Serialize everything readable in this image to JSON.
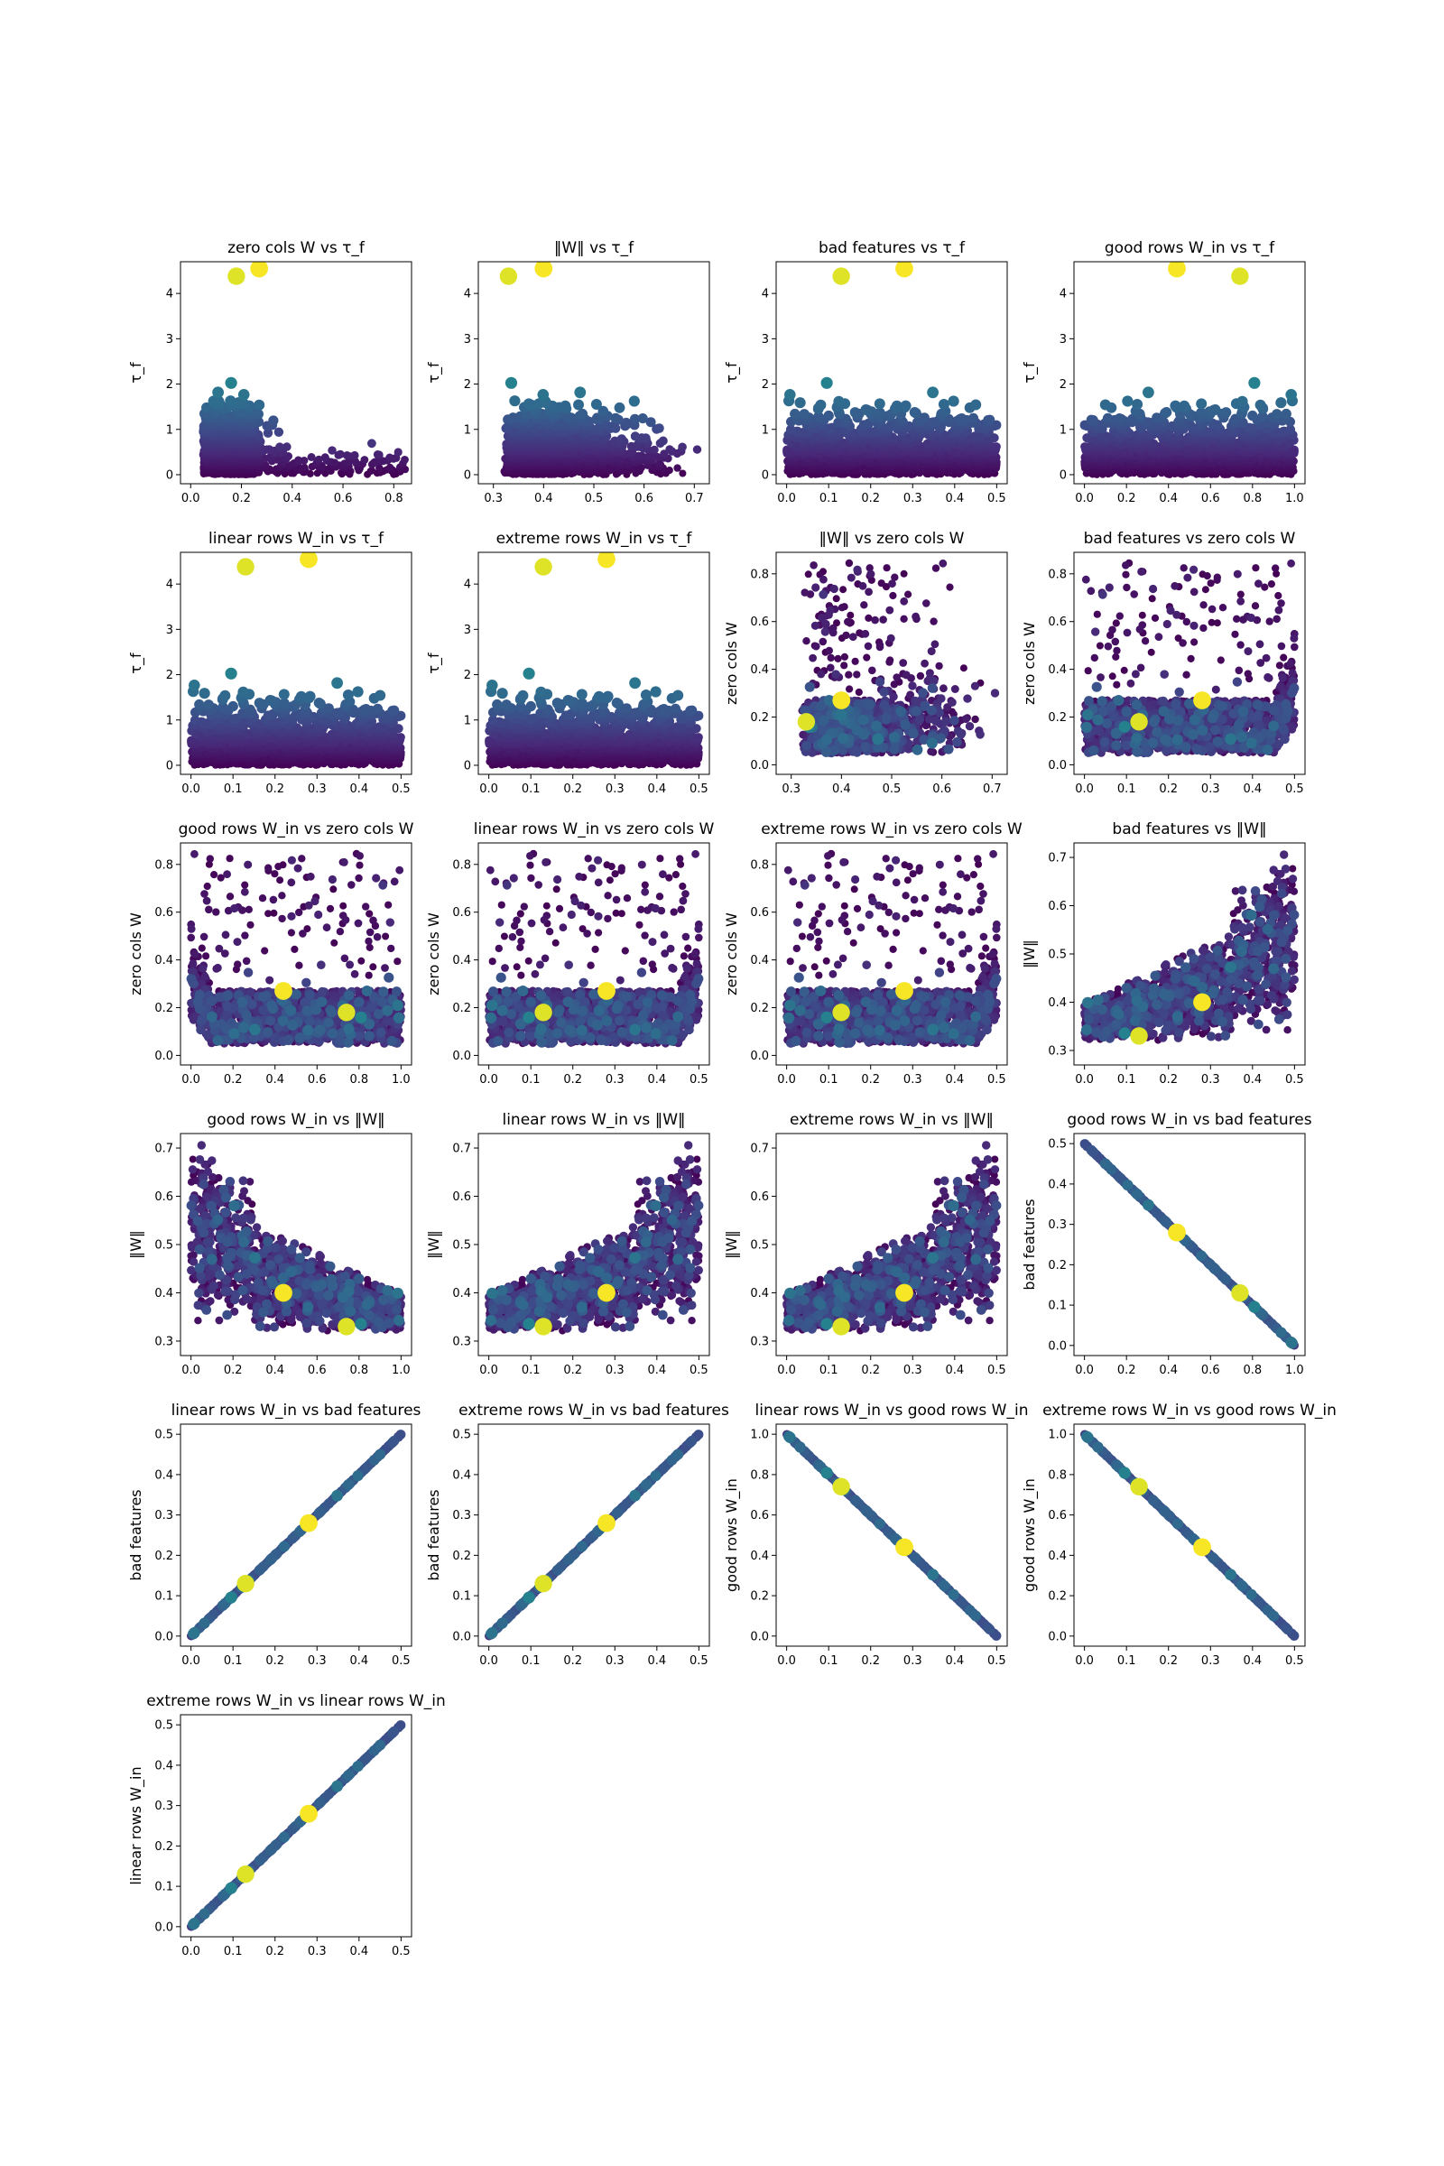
{
  "figure": {
    "colormap": "viridis"
  },
  "chart_data": [
    {
      "type": "scatter",
      "title": "zero cols W vs τ_f",
      "ylabel": "τ_f",
      "xlim": [
        -0.04,
        0.87
      ],
      "ylim": [
        -0.2,
        4.7
      ],
      "xticks": [
        "0.0",
        "0.2",
        "0.4",
        "0.6",
        "0.8"
      ],
      "yticks": [
        "0",
        "1",
        "2",
        "3",
        "4"
      ],
      "x_field": "zero_cols_W",
      "y_field": "tau_f"
    },
    {
      "type": "scatter",
      "title": "‖W‖ vs τ_f",
      "ylabel": "τ_f",
      "xlim": [
        0.27,
        0.73
      ],
      "ylim": [
        -0.2,
        4.7
      ],
      "xticks": [
        "0.3",
        "0.4",
        "0.5",
        "0.6",
        "0.7"
      ],
      "yticks": [
        "0",
        "1",
        "2",
        "3",
        "4"
      ],
      "x_field": "norm_W",
      "y_field": "tau_f"
    },
    {
      "type": "scatter",
      "title": "bad features vs τ_f",
      "ylabel": "τ_f",
      "xlim": [
        -0.025,
        0.525
      ],
      "ylim": [
        -0.2,
        4.7
      ],
      "xticks": [
        "0.0",
        "0.1",
        "0.2",
        "0.3",
        "0.4",
        "0.5"
      ],
      "yticks": [
        "0",
        "1",
        "2",
        "3",
        "4"
      ],
      "x_field": "bad_features",
      "y_field": "tau_f"
    },
    {
      "type": "scatter",
      "title": "good rows W_in vs τ_f",
      "ylabel": "τ_f",
      "xlim": [
        -0.05,
        1.05
      ],
      "ylim": [
        -0.2,
        4.7
      ],
      "xticks": [
        "0.0",
        "0.2",
        "0.4",
        "0.6",
        "0.8",
        "1.0"
      ],
      "yticks": [
        "0",
        "1",
        "2",
        "3",
        "4"
      ],
      "x_field": "good_rows_W_in",
      "y_field": "tau_f"
    },
    {
      "type": "scatter",
      "title": "linear rows W_in vs τ_f",
      "ylabel": "τ_f",
      "xlim": [
        -0.025,
        0.525
      ],
      "ylim": [
        -0.2,
        4.7
      ],
      "xticks": [
        "0.0",
        "0.1",
        "0.2",
        "0.3",
        "0.4",
        "0.5"
      ],
      "yticks": [
        "0",
        "1",
        "2",
        "3",
        "4"
      ],
      "x_field": "linear_rows_W_in",
      "y_field": "tau_f"
    },
    {
      "type": "scatter",
      "title": "extreme rows W_in vs τ_f",
      "ylabel": "τ_f",
      "xlim": [
        -0.025,
        0.525
      ],
      "ylim": [
        -0.2,
        4.7
      ],
      "xticks": [
        "0.0",
        "0.1",
        "0.2",
        "0.3",
        "0.4",
        "0.5"
      ],
      "yticks": [
        "0",
        "1",
        "2",
        "3",
        "4"
      ],
      "x_field": "extreme_rows_W_in",
      "y_field": "tau_f"
    },
    {
      "type": "scatter",
      "title": "‖W‖ vs zero cols W",
      "ylabel": "zero cols W",
      "xlim": [
        0.27,
        0.73
      ],
      "ylim": [
        -0.04,
        0.89
      ],
      "xticks": [
        "0.3",
        "0.4",
        "0.5",
        "0.6",
        "0.7"
      ],
      "yticks": [
        "0.0",
        "0.2",
        "0.4",
        "0.6",
        "0.8"
      ],
      "x_field": "norm_W",
      "y_field": "zero_cols_W"
    },
    {
      "type": "scatter",
      "title": "bad features vs zero cols W",
      "ylabel": "zero cols W",
      "xlim": [
        -0.025,
        0.525
      ],
      "ylim": [
        -0.04,
        0.89
      ],
      "xticks": [
        "0.0",
        "0.1",
        "0.2",
        "0.3",
        "0.4",
        "0.5"
      ],
      "yticks": [
        "0.0",
        "0.2",
        "0.4",
        "0.6",
        "0.8"
      ],
      "x_field": "bad_features",
      "y_field": "zero_cols_W"
    },
    {
      "type": "scatter",
      "title": "good rows W_in vs zero cols W",
      "ylabel": "zero cols W",
      "xlim": [
        -0.05,
        1.05
      ],
      "ylim": [
        -0.04,
        0.89
      ],
      "xticks": [
        "0.0",
        "0.2",
        "0.4",
        "0.6",
        "0.8",
        "1.0"
      ],
      "yticks": [
        "0.0",
        "0.2",
        "0.4",
        "0.6",
        "0.8"
      ],
      "x_field": "good_rows_W_in",
      "y_field": "zero_cols_W"
    },
    {
      "type": "scatter",
      "title": "linear rows W_in vs zero cols W",
      "ylabel": "zero cols W",
      "xlim": [
        -0.025,
        0.525
      ],
      "ylim": [
        -0.04,
        0.89
      ],
      "xticks": [
        "0.0",
        "0.1",
        "0.2",
        "0.3",
        "0.4",
        "0.5"
      ],
      "yticks": [
        "0.0",
        "0.2",
        "0.4",
        "0.6",
        "0.8"
      ],
      "x_field": "linear_rows_W_in",
      "y_field": "zero_cols_W"
    },
    {
      "type": "scatter",
      "title": "extreme rows W_in vs zero cols W",
      "ylabel": "zero cols W",
      "xlim": [
        -0.025,
        0.525
      ],
      "ylim": [
        -0.04,
        0.89
      ],
      "xticks": [
        "0.0",
        "0.1",
        "0.2",
        "0.3",
        "0.4",
        "0.5"
      ],
      "yticks": [
        "0.0",
        "0.2",
        "0.4",
        "0.6",
        "0.8"
      ],
      "x_field": "extreme_rows_W_in",
      "y_field": "zero_cols_W"
    },
    {
      "type": "scatter",
      "title": "bad features vs ‖W‖",
      "ylabel": "‖W‖",
      "xlim": [
        -0.025,
        0.525
      ],
      "ylim": [
        0.27,
        0.73
      ],
      "xticks": [
        "0.0",
        "0.1",
        "0.2",
        "0.3",
        "0.4",
        "0.5"
      ],
      "yticks": [
        "0.3",
        "0.4",
        "0.5",
        "0.6",
        "0.7"
      ],
      "x_field": "bad_features",
      "y_field": "norm_W"
    },
    {
      "type": "scatter",
      "title": "good rows W_in vs ‖W‖",
      "ylabel": "‖W‖",
      "xlim": [
        -0.05,
        1.05
      ],
      "ylim": [
        0.27,
        0.73
      ],
      "xticks": [
        "0.0",
        "0.2",
        "0.4",
        "0.6",
        "0.8",
        "1.0"
      ],
      "yticks": [
        "0.3",
        "0.4",
        "0.5",
        "0.6",
        "0.7"
      ],
      "x_field": "good_rows_W_in",
      "y_field": "norm_W"
    },
    {
      "type": "scatter",
      "title": "linear rows W_in vs ‖W‖",
      "ylabel": "‖W‖",
      "xlim": [
        -0.025,
        0.525
      ],
      "ylim": [
        0.27,
        0.73
      ],
      "xticks": [
        "0.0",
        "0.1",
        "0.2",
        "0.3",
        "0.4",
        "0.5"
      ],
      "yticks": [
        "0.3",
        "0.4",
        "0.5",
        "0.6",
        "0.7"
      ],
      "x_field": "linear_rows_W_in",
      "y_field": "norm_W"
    },
    {
      "type": "scatter",
      "title": "extreme rows W_in vs ‖W‖",
      "ylabel": "‖W‖",
      "xlim": [
        -0.025,
        0.525
      ],
      "ylim": [
        0.27,
        0.73
      ],
      "xticks": [
        "0.0",
        "0.1",
        "0.2",
        "0.3",
        "0.4",
        "0.5"
      ],
      "yticks": [
        "0.3",
        "0.4",
        "0.5",
        "0.6",
        "0.7"
      ],
      "x_field": "extreme_rows_W_in",
      "y_field": "norm_W"
    },
    {
      "type": "scatter",
      "title": "good rows W_in vs bad features",
      "ylabel": "bad features",
      "xlim": [
        -0.05,
        1.05
      ],
      "ylim": [
        -0.025,
        0.525
      ],
      "xticks": [
        "0.0",
        "0.2",
        "0.4",
        "0.6",
        "0.8",
        "1.0"
      ],
      "yticks": [
        "0.0",
        "0.1",
        "0.2",
        "0.3",
        "0.4",
        "0.5"
      ],
      "x_field": "good_rows_W_in",
      "y_field": "bad_features"
    },
    {
      "type": "scatter",
      "title": "linear rows W_in vs bad features",
      "ylabel": "bad features",
      "xlim": [
        -0.025,
        0.525
      ],
      "ylim": [
        -0.025,
        0.525
      ],
      "xticks": [
        "0.0",
        "0.1",
        "0.2",
        "0.3",
        "0.4",
        "0.5"
      ],
      "yticks": [
        "0.0",
        "0.1",
        "0.2",
        "0.3",
        "0.4",
        "0.5"
      ],
      "x_field": "linear_rows_W_in",
      "y_field": "bad_features"
    },
    {
      "type": "scatter",
      "title": "extreme rows W_in vs bad features",
      "ylabel": "bad features",
      "xlim": [
        -0.025,
        0.525
      ],
      "ylim": [
        -0.025,
        0.525
      ],
      "xticks": [
        "0.0",
        "0.1",
        "0.2",
        "0.3",
        "0.4",
        "0.5"
      ],
      "yticks": [
        "0.0",
        "0.1",
        "0.2",
        "0.3",
        "0.4",
        "0.5"
      ],
      "x_field": "extreme_rows_W_in",
      "y_field": "bad_features"
    },
    {
      "type": "scatter",
      "title": "linear rows W_in vs good rows W_in",
      "ylabel": "good rows W_in",
      "xlim": [
        -0.025,
        0.525
      ],
      "ylim": [
        -0.05,
        1.05
      ],
      "xticks": [
        "0.0",
        "0.1",
        "0.2",
        "0.3",
        "0.4",
        "0.5"
      ],
      "yticks": [
        "0.0",
        "0.2",
        "0.4",
        "0.6",
        "0.8",
        "1.0"
      ],
      "x_field": "linear_rows_W_in",
      "y_field": "good_rows_W_in"
    },
    {
      "type": "scatter",
      "title": "extreme rows W_in vs good rows W_in",
      "ylabel": "good rows W_in",
      "xlim": [
        -0.025,
        0.525
      ],
      "ylim": [
        -0.05,
        1.05
      ],
      "xticks": [
        "0.0",
        "0.1",
        "0.2",
        "0.3",
        "0.4",
        "0.5"
      ],
      "yticks": [
        "0.0",
        "0.2",
        "0.4",
        "0.6",
        "0.8",
        "1.0"
      ],
      "x_field": "extreme_rows_W_in",
      "y_field": "good_rows_W_in"
    },
    {
      "type": "scatter",
      "title": "extreme rows W_in vs linear rows W_in",
      "ylabel": "linear rows W_in",
      "xlim": [
        -0.025,
        0.525
      ],
      "ylim": [
        -0.025,
        0.525
      ],
      "xticks": [
        "0.0",
        "0.1",
        "0.2",
        "0.3",
        "0.4",
        "0.5"
      ],
      "yticks": [
        "0.0",
        "0.1",
        "0.2",
        "0.3",
        "0.4",
        "0.5"
      ],
      "x_field": "extreme_rows_W_in",
      "y_field": "linear_rows_W_in"
    }
  ],
  "highlight_points": [
    {
      "zero_cols_W": 0.27,
      "norm_W": 0.4,
      "bad_features": 0.28,
      "good_rows_W_in": 0.44,
      "linear_rows_W_in": 0.28,
      "extreme_rows_W_in": 0.28,
      "tau_f": 4.55
    },
    {
      "zero_cols_W": 0.18,
      "norm_W": 0.33,
      "bad_features": 0.13,
      "good_rows_W_in": 0.74,
      "linear_rows_W_in": 0.13,
      "extreme_rows_W_in": 0.13,
      "tau_f": 4.38
    }
  ]
}
